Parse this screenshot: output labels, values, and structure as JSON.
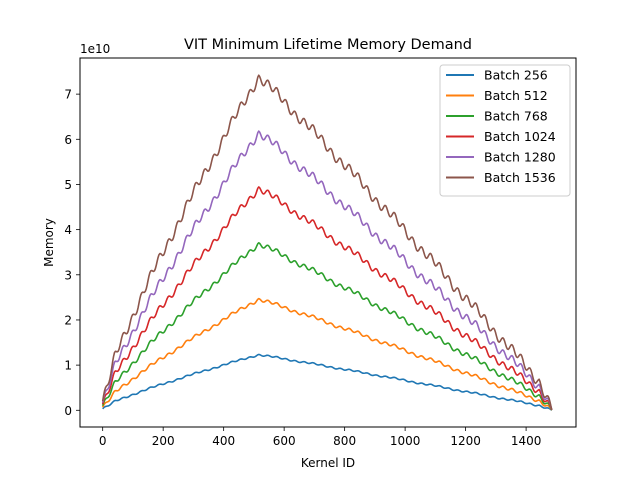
{
  "chart_data": {
    "type": "line",
    "title": "VIT Minimum Lifetime Memory Demand",
    "xlabel": "Kernel ID",
    "ylabel": "Memory",
    "y_offset_label": "1e10",
    "xlim": [
      -75,
      1565
    ],
    "ylim": [
      -0.37,
      7.8
    ],
    "y_scale_exponent": 10,
    "x_ticks": [
      0,
      200,
      400,
      600,
      800,
      1000,
      1200,
      1400
    ],
    "y_ticks": [
      0,
      1,
      2,
      3,
      4,
      5,
      6,
      7
    ],
    "grid": false,
    "legend_position": "upper right",
    "peak_kernel": 515,
    "end_kernel": 1485,
    "series": [
      {
        "name": "Batch 256",
        "color": "#1f77b4",
        "peak": 1.23
      },
      {
        "name": "Batch 512",
        "color": "#ff7f0e",
        "peak": 2.46
      },
      {
        "name": "Batch 768",
        "color": "#2ca02c",
        "peak": 3.69
      },
      {
        "name": "Batch 1024",
        "color": "#d62728",
        "peak": 4.92
      },
      {
        "name": "Batch 1280",
        "color": "#9467bd",
        "peak": 6.15
      },
      {
        "name": "Batch 1536",
        "color": "#8c564b",
        "peak": 7.38
      }
    ]
  }
}
